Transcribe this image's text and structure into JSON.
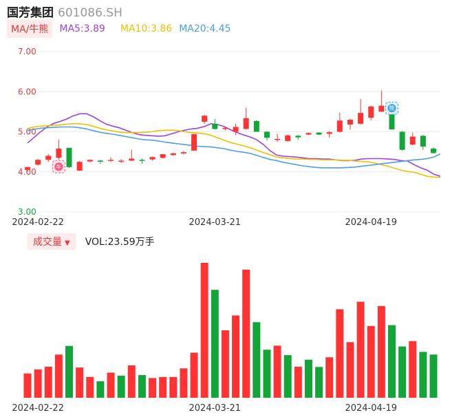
{
  "header": {
    "name": "国芳集团",
    "code": "601086.SH"
  },
  "ma": {
    "button_label": "MA/牛熊",
    "ma5_label": "MA5:3.89",
    "ma10_label": "MA10:3.86",
    "ma20_label": "MA20:4.45",
    "ma5_color": "#a040e0",
    "ma10_color": "#f0c000",
    "ma20_color": "#4a9ee8"
  },
  "volume": {
    "button_label": "成交量",
    "caret": "▼",
    "value_label": "VOL:23.59万手"
  },
  "colors": {
    "up": "#ff3333",
    "down": "#13a537",
    "grid": "#ebebeb"
  },
  "badges": {
    "bull": "牛",
    "bear": "熊"
  },
  "chart_data": [
    {
      "type": "candlestick",
      "y_ticks": [
        "7.00",
        "6.00",
        "5.00",
        "4.00",
        "3.00"
      ],
      "ylim": [
        3.0,
        7.0
      ],
      "x_tick_labels": [
        "2024-02-22",
        "2024-03-21",
        "2024-04-19"
      ],
      "x_tick_index": [
        1,
        18,
        33
      ],
      "candles": [
        {
          "o": 4.05,
          "h": 4.12,
          "l": 4.0,
          "c": 4.12
        },
        {
          "o": 4.18,
          "h": 4.32,
          "l": 4.15,
          "c": 4.3
        },
        {
          "o": 4.3,
          "h": 4.45,
          "l": 4.25,
          "c": 4.4
        },
        {
          "o": 4.35,
          "h": 4.8,
          "l": 4.3,
          "c": 4.58
        },
        {
          "o": 4.6,
          "h": 4.6,
          "l": 4.1,
          "c": 4.12
        },
        {
          "o": 4.03,
          "h": 4.27,
          "l": 4.02,
          "c": 4.25
        },
        {
          "o": 4.26,
          "h": 4.31,
          "l": 4.24,
          "c": 4.3
        },
        {
          "o": 4.28,
          "h": 4.3,
          "l": 4.2,
          "c": 4.26
        },
        {
          "o": 4.3,
          "h": 4.36,
          "l": 4.25,
          "c": 4.3
        },
        {
          "o": 4.27,
          "h": 4.32,
          "l": 4.22,
          "c": 4.28
        },
        {
          "o": 4.28,
          "h": 4.55,
          "l": 4.27,
          "c": 4.33
        },
        {
          "o": 4.3,
          "h": 4.33,
          "l": 4.2,
          "c": 4.28
        },
        {
          "o": 4.31,
          "h": 4.38,
          "l": 4.28,
          "c": 4.37
        },
        {
          "o": 4.35,
          "h": 4.45,
          "l": 4.33,
          "c": 4.44
        },
        {
          "o": 4.42,
          "h": 4.48,
          "l": 4.4,
          "c": 4.46
        },
        {
          "o": 4.46,
          "h": 4.52,
          "l": 4.43,
          "c": 4.49
        },
        {
          "o": 4.53,
          "h": 4.95,
          "l": 4.52,
          "c": 4.94
        },
        {
          "o": 5.25,
          "h": 5.42,
          "l": 5.2,
          "c": 5.4
        },
        {
          "o": 5.2,
          "h": 5.32,
          "l": 5.05,
          "c": 5.07
        },
        {
          "o": 5.07,
          "h": 5.12,
          "l": 5.03,
          "c": 5.1
        },
        {
          "o": 5.0,
          "h": 5.2,
          "l": 4.92,
          "c": 5.12
        },
        {
          "o": 5.07,
          "h": 5.6,
          "l": 5.05,
          "c": 5.34
        },
        {
          "o": 5.27,
          "h": 5.29,
          "l": 5.0,
          "c": 5.0
        },
        {
          "o": 5.0,
          "h": 5.02,
          "l": 4.78,
          "c": 4.85
        },
        {
          "o": 4.8,
          "h": 4.95,
          "l": 4.75,
          "c": 4.82
        },
        {
          "o": 4.77,
          "h": 4.93,
          "l": 4.75,
          "c": 4.91
        },
        {
          "o": 4.9,
          "h": 4.92,
          "l": 4.8,
          "c": 4.86
        },
        {
          "o": 4.93,
          "h": 4.98,
          "l": 4.92,
          "c": 4.97
        },
        {
          "o": 4.98,
          "h": 4.99,
          "l": 4.92,
          "c": 4.93
        },
        {
          "o": 4.95,
          "h": 5.02,
          "l": 4.85,
          "c": 4.99
        },
        {
          "o": 5.0,
          "h": 5.48,
          "l": 4.98,
          "c": 5.28
        },
        {
          "o": 5.18,
          "h": 5.33,
          "l": 5.05,
          "c": 5.3
        },
        {
          "o": 5.2,
          "h": 5.82,
          "l": 5.18,
          "c": 5.47
        },
        {
          "o": 5.35,
          "h": 5.65,
          "l": 5.28,
          "c": 5.63
        },
        {
          "o": 5.5,
          "h": 6.03,
          "l": 5.5,
          "c": 5.65
        },
        {
          "o": 5.52,
          "h": 5.68,
          "l": 5.05,
          "c": 5.06
        },
        {
          "o": 5.0,
          "h": 5.02,
          "l": 4.53,
          "c": 4.55
        },
        {
          "o": 4.68,
          "h": 4.98,
          "l": 4.66,
          "c": 4.88
        },
        {
          "o": 4.9,
          "h": 4.92,
          "l": 4.55,
          "c": 4.63
        },
        {
          "o": 4.58,
          "h": 4.62,
          "l": 4.46,
          "c": 4.47
        }
      ],
      "ma5": [
        4.72,
        4.86,
        5.0,
        5.12,
        5.21,
        5.26,
        5.32,
        5.4,
        5.45,
        5.45,
        5.38,
        5.28,
        5.19,
        5.14,
        5.1,
        5.04,
        4.98,
        4.93,
        4.91,
        4.9,
        4.89,
        4.9,
        4.95,
        5.0,
        5.04,
        5.07,
        5.09,
        5.13,
        5.2,
        5.18,
        5.13,
        5.05,
        4.98,
        4.92,
        4.87,
        4.8,
        4.68,
        4.53,
        4.42,
        4.39,
        4.38,
        4.37,
        4.35,
        4.33,
        4.33,
        4.32,
        4.32,
        4.3,
        4.28,
        4.28,
        4.29,
        4.32,
        4.33,
        4.33,
        4.33,
        4.32,
        4.31,
        4.28,
        4.27,
        4.18,
        4.1,
        4.04,
        3.94,
        3.89
      ],
      "ma10": [
        5.08,
        5.12,
        5.14,
        5.15,
        5.16,
        5.17,
        5.19,
        5.2,
        5.2,
        5.18,
        5.14,
        5.09,
        5.05,
        5.02,
        4.99,
        4.98,
        4.98,
        4.98,
        4.99,
        5.0,
        5.03,
        5.04,
        5.04,
        5.03,
        5.0,
        4.98,
        4.97,
        4.95,
        4.91,
        4.85,
        4.79,
        4.73,
        4.69,
        4.65,
        4.6,
        4.54,
        4.48,
        4.43,
        4.37,
        4.35,
        4.33,
        4.32,
        4.32,
        4.31,
        4.31,
        4.3,
        4.3,
        4.3,
        4.29,
        4.29,
        4.27,
        4.26,
        4.25,
        4.22,
        4.18,
        4.14,
        4.09,
        4.04,
        4.01,
        3.99,
        3.94,
        3.89,
        3.87,
        3.86
      ],
      "ma20": [
        5.03,
        5.06,
        5.09,
        5.1,
        5.11,
        5.12,
        5.12,
        5.12,
        5.1,
        5.07,
        5.03,
        4.99,
        4.96,
        4.94,
        4.91,
        4.88,
        4.85,
        4.82,
        4.8,
        4.79,
        4.77,
        4.74,
        4.72,
        4.7,
        4.68,
        4.66,
        4.64,
        4.63,
        4.62,
        4.6,
        4.58,
        4.54,
        4.51,
        4.49,
        4.46,
        4.41,
        4.36,
        4.31,
        4.28,
        4.24,
        4.21,
        4.18,
        4.15,
        4.13,
        4.11,
        4.1,
        4.1,
        4.1,
        4.1,
        4.11,
        4.12,
        4.14,
        4.16,
        4.18,
        4.2,
        4.22,
        4.24,
        4.26,
        4.28,
        4.3,
        4.31,
        4.33,
        4.37,
        4.45
      ]
    },
    {
      "type": "bar",
      "title": "成交量",
      "x_tick_labels": [
        "2024-02-22",
        "2024-03-21",
        "2024-04-19"
      ],
      "values": [
        9.0,
        10.5,
        11.5,
        16.0,
        19.2,
        11.2,
        7.7,
        6.1,
        9.3,
        8.2,
        12.0,
        8.4,
        7.3,
        7.7,
        7.7,
        10.9,
        16.7,
        50.0,
        40.0,
        25.0,
        30.5,
        47.5,
        28.0,
        17.8,
        19.3,
        15.8,
        11.5,
        14.1,
        11.4,
        15.0,
        32.8,
        20.6,
        35.6,
        26.6,
        34.0,
        26.9,
        19.0,
        21.0,
        17.0,
        16.0
      ],
      "up": [
        true,
        true,
        true,
        true,
        false,
        true,
        true,
        false,
        true,
        false,
        true,
        false,
        true,
        true,
        true,
        true,
        true,
        true,
        false,
        true,
        true,
        true,
        false,
        false,
        true,
        false,
        true,
        false,
        false,
        true,
        true,
        true,
        true,
        true,
        true,
        false,
        false,
        true,
        false,
        false
      ]
    }
  ]
}
